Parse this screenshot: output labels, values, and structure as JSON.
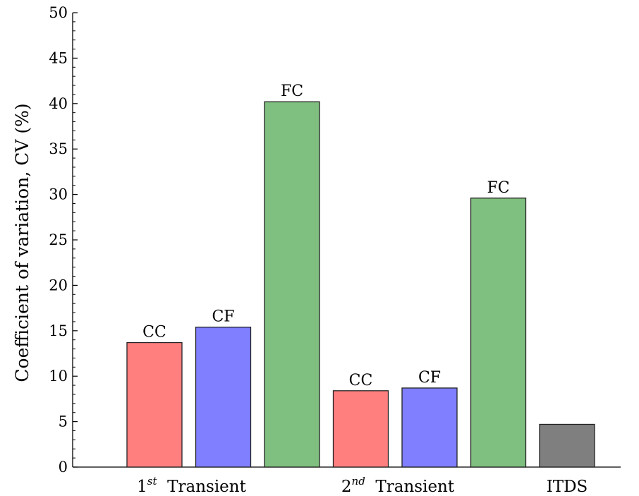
{
  "chart_data": {
    "type": "bar",
    "ylabel": "Coefficient of variation, CV (%)",
    "ylim": [
      0,
      50
    ],
    "yticks": [
      "0",
      "5",
      "10",
      "15",
      "20",
      "25",
      "30",
      "35",
      "40",
      "45",
      "50"
    ],
    "grid": false,
    "groups": [
      {
        "label_main": "1",
        "label_sup": "st",
        "label_rest": "Transient",
        "bars": [
          {
            "label": "CC",
            "value": 13.7,
            "color": "#ff7f7f"
          },
          {
            "label": "CF",
            "value": 15.4,
            "color": "#7f7fff"
          },
          {
            "label": "FC",
            "value": 40.2,
            "color": "#7fbf7f"
          }
        ]
      },
      {
        "label_main": "2",
        "label_sup": "nd",
        "label_rest": "Transient",
        "bars": [
          {
            "label": "CC",
            "value": 8.4,
            "color": "#ff7f7f"
          },
          {
            "label": "CF",
            "value": 8.7,
            "color": "#7f7fff"
          },
          {
            "label": "FC",
            "value": 29.6,
            "color": "#7fbf7f"
          }
        ]
      },
      {
        "label_main": "ITDS",
        "label_sup": "",
        "label_rest": "",
        "bars": [
          {
            "label": "",
            "value": 4.7,
            "color": "#7f7f7f"
          }
        ]
      }
    ]
  }
}
